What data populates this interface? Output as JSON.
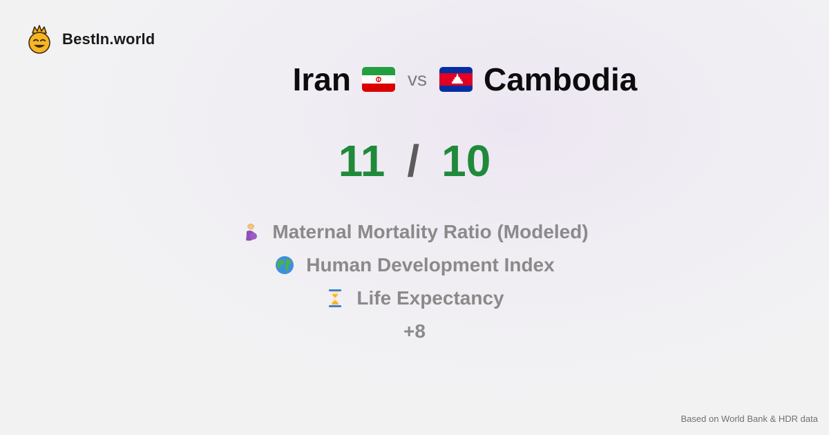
{
  "brand": {
    "name": "BestIn.world",
    "icon": "crowned-smiley-icon"
  },
  "comparison": {
    "left": {
      "country": "Iran",
      "flag": "iran-flag-icon",
      "score": "11"
    },
    "vs_label": "vs",
    "right": {
      "country": "Cambodia",
      "flag": "cambodia-flag-icon",
      "score": "10"
    },
    "separator": "/"
  },
  "metrics": [
    {
      "label": "Maternal Mortality Ratio (Modeled)",
      "icon": "pregnant-woman-icon"
    },
    {
      "label": "Human Development Index",
      "icon": "globe-icon"
    },
    {
      "label": "Life Expectancy",
      "icon": "hourglass-icon"
    }
  ],
  "more_label": "+8",
  "footer": {
    "source": "Based on World Bank & HDR data"
  },
  "colors": {
    "score": "#1f8a3a",
    "muted": "#8a8a8a",
    "accent": "#f6b320"
  }
}
